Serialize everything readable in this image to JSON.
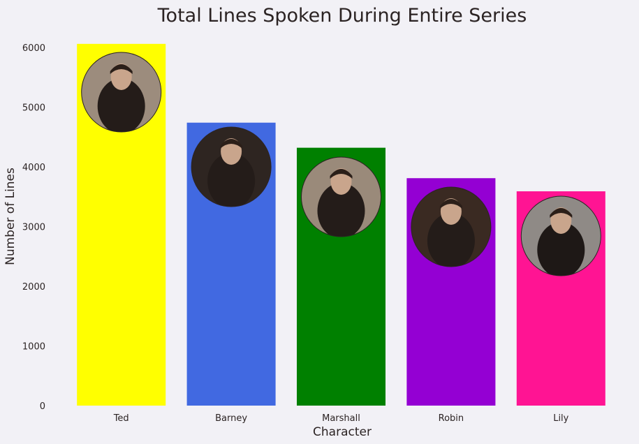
{
  "chart_data": {
    "type": "bar",
    "title": "Total Lines Spoken During Entire Series",
    "xlabel": "Character",
    "ylabel": "Number of Lines",
    "categories": [
      "Ted",
      "Barney",
      "Marshall",
      "Robin",
      "Lily"
    ],
    "values": [
      6060,
      4740,
      4320,
      3810,
      3590
    ],
    "colors": [
      "#ffff00",
      "#4169e1",
      "#008000",
      "#9400d3",
      "#ff1493"
    ],
    "ylim": [
      0,
      6000
    ],
    "yticks": [
      0,
      1000,
      2000,
      3000,
      4000,
      5000,
      6000
    ],
    "grid": false,
    "legend": "none",
    "portrait_icons": [
      "ted-portrait-icon",
      "barney-portrait-icon",
      "marshall-portrait-icon",
      "robin-portrait-icon",
      "lily-portrait-icon"
    ]
  }
}
